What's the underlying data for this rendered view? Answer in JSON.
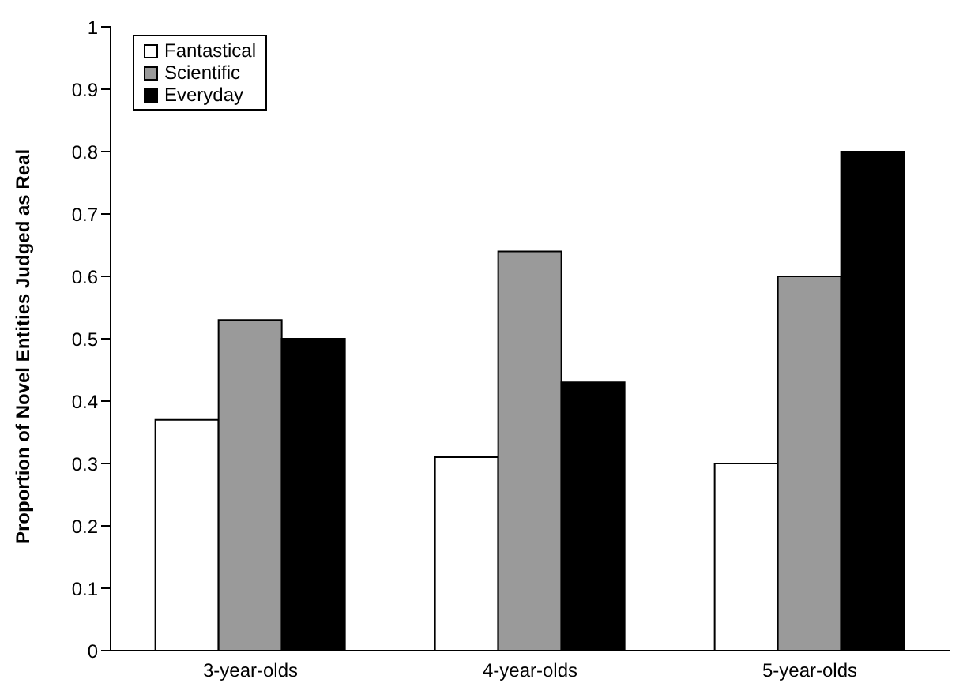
{
  "chart_data": {
    "type": "bar",
    "ylabel": "Proportion of Novel Entities Judged as Real",
    "categories": [
      "3-year-olds",
      "4-year-olds",
      "5-year-olds"
    ],
    "series": [
      {
        "name": "Fantastical",
        "color": "#ffffff",
        "values": [
          0.37,
          0.31,
          0.3
        ]
      },
      {
        "name": "Scientific",
        "color": "#9a9a9a",
        "values": [
          0.53,
          0.64,
          0.6
        ]
      },
      {
        "name": "Everyday",
        "color": "#000000",
        "values": [
          0.5,
          0.43,
          0.8
        ]
      }
    ],
    "ylim": [
      0,
      1
    ],
    "yticks": [
      0,
      0.1,
      0.2,
      0.3,
      0.4,
      0.5,
      0.6,
      0.7,
      0.8,
      0.9,
      1
    ],
    "grid": false,
    "legend": "top left"
  }
}
